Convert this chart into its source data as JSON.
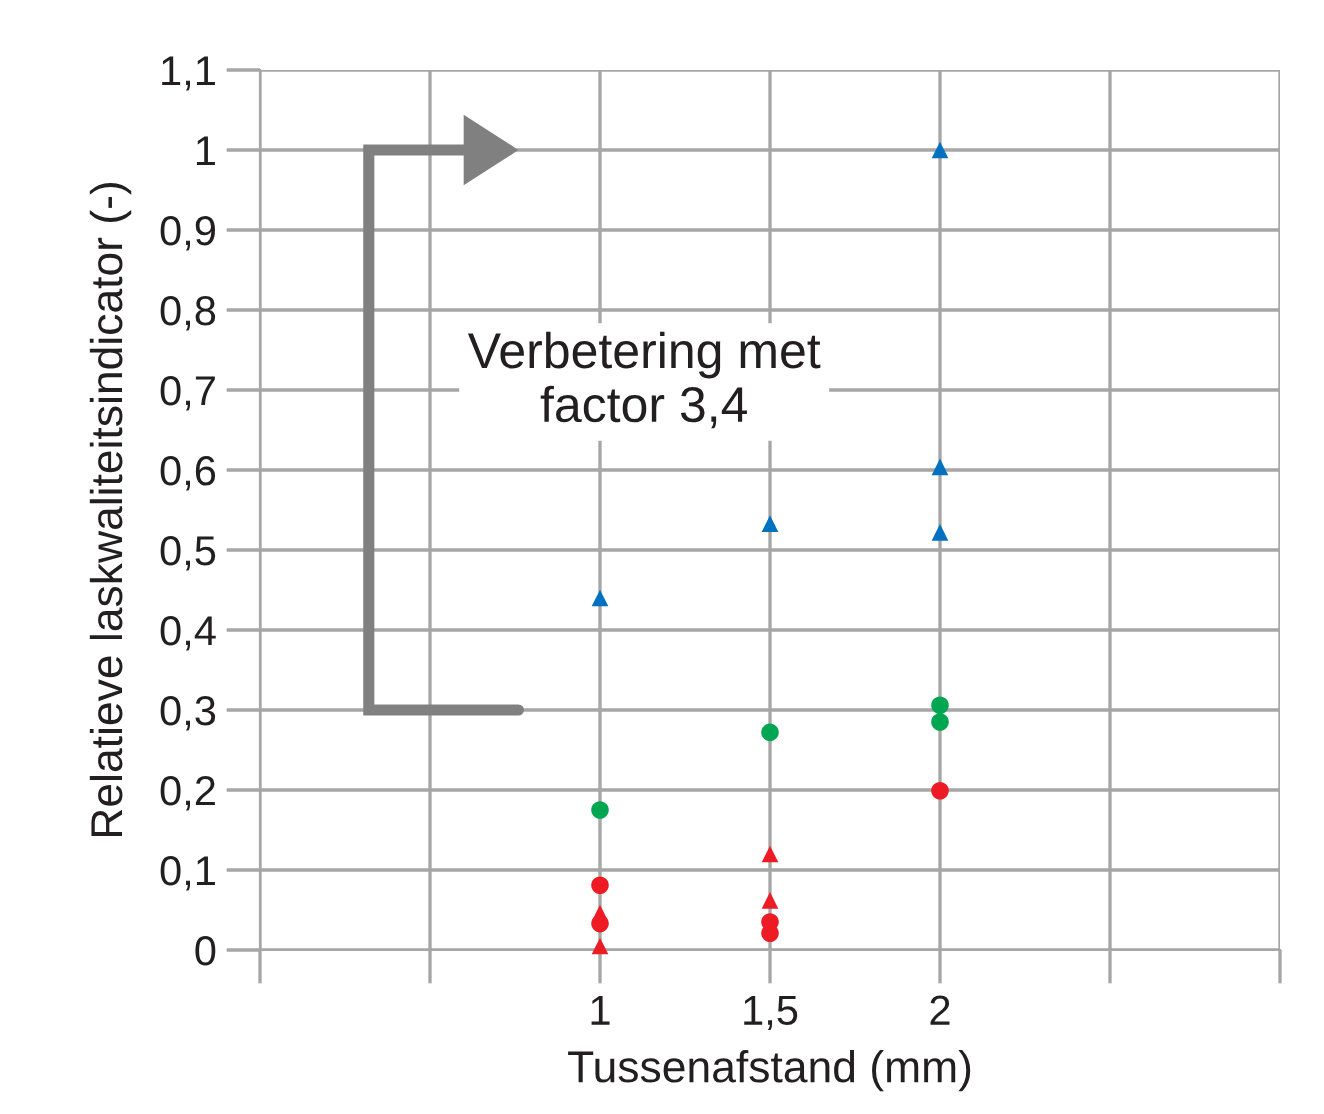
{
  "chart_data": {
    "type": "scatter",
    "xlabel": "Tussenafstand (mm)",
    "ylabel": "Relatieve laskwaliteitsindicator (-)",
    "xlim": [
      0,
      3
    ],
    "xticks": [
      {
        "value": 0,
        "label": null
      },
      {
        "value": 0.5,
        "label": null
      },
      1,
      {
        "value": 1.5,
        "label": "1,5"
      },
      2,
      {
        "value": 2.5,
        "label": null
      },
      {
        "value": 3,
        "label": null
      }
    ],
    "ylim": [
      0,
      1.1
    ],
    "yticks": [
      0,
      {
        "value": 0.1,
        "label": "0,1"
      },
      {
        "value": 0.2,
        "label": "0,2"
      },
      {
        "value": 0.3,
        "label": "0,3"
      },
      {
        "value": 0.4,
        "label": "0,4"
      },
      {
        "value": 0.5,
        "label": "0,5"
      },
      {
        "value": 0.6,
        "label": "0,6"
      },
      {
        "value": 0.7,
        "label": "0,7"
      },
      {
        "value": 0.8,
        "label": "0,8"
      },
      {
        "value": 0.9,
        "label": "0,9"
      },
      1,
      {
        "value": 1.1,
        "label": "1,1"
      }
    ],
    "grid": true,
    "legend": false,
    "annotations": [
      "Verbetering met\nfactor 3,4"
    ],
    "series": [
      {
        "color": "#0070c0",
        "marker": "triangle",
        "x": [
          1,
          1.5,
          2,
          2,
          2
        ],
        "values": [
          0.44,
          0.533,
          1.0,
          0.604,
          0.522
        ]
      },
      {
        "color": "#00a651",
        "marker": "circle",
        "x": [
          1,
          1.5,
          2,
          2
        ],
        "values": [
          0.175,
          0.272,
          0.306,
          0.285
        ]
      },
      {
        "color": "#ed1c24",
        "marker": "circle",
        "x": [
          1,
          1,
          1.5,
          1.5,
          2
        ],
        "values": [
          0.081,
          0.033,
          0.035,
          0.021,
          0.199
        ]
      },
      {
        "color": "#ed1c24",
        "marker": "triangle",
        "x": [
          1,
          1,
          1.5,
          1.5
        ],
        "values": [
          0.046,
          0.005,
          0.12,
          0.062
        ]
      }
    ]
  }
}
